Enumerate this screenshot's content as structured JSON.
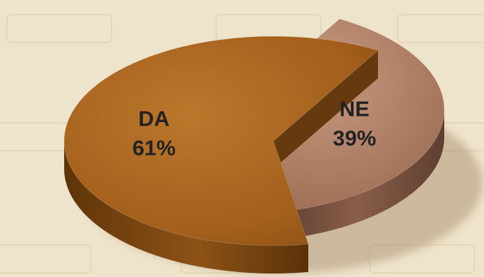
{
  "colors": {
    "background": "#eee3cb",
    "watermark": "#e4d7ba",
    "label": "#222222"
  },
  "chart_data": {
    "type": "pie",
    "style": "3d-exploded",
    "title": "",
    "slices": [
      {
        "label": "NE",
        "value": 39,
        "value_label": "39%",
        "color": "#b07c61",
        "side_color": "#6a4838",
        "exploded": true
      },
      {
        "label": "DA",
        "value": 61,
        "value_label": "61%",
        "color": "#a8641c",
        "side_color": "#663a0e",
        "exploded": false
      }
    ],
    "legend": "none"
  }
}
